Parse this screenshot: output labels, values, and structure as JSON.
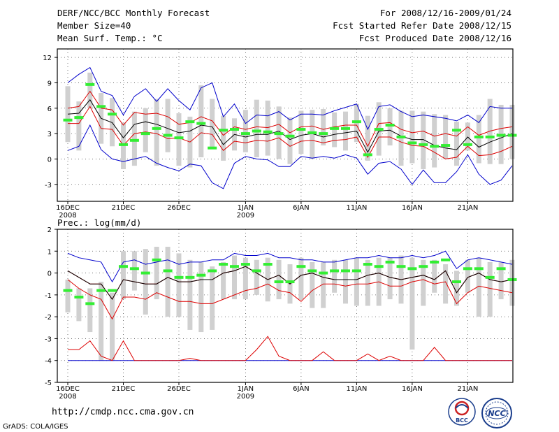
{
  "header": {
    "title": "DERF/NCC/BCC Monthly Forecast",
    "member": "Member Size=40",
    "variable": "Mean Surf. Temp.: °C",
    "period": "For 2008/12/16-2009/01/24",
    "started": "Fcst Started Refer Date 2008/12/15",
    "produced": "Fcst Produced Date 2008/12/16"
  },
  "footer": {
    "url": "http://cmdp.ncc.cma.gov.cn",
    "grads": "GrADS: COLA/IGES",
    "logo_left": "BCC",
    "logo_right": "NCC"
  },
  "colors": {
    "max": "#0000cc",
    "pct": "#dd0000",
    "mean": "#000000",
    "obs": "#33ee33",
    "box": "#d0d0d0"
  },
  "chart_data": [
    {
      "type": "line",
      "title": "Mean Surf. Temp.: °C",
      "ylim": [
        -5,
        13
      ],
      "yticks": [
        12,
        9,
        6,
        3,
        0,
        -3
      ],
      "xticks": [
        {
          "i": 0,
          "label": "16DEC",
          "sub": "2008"
        },
        {
          "i": 5,
          "label": "21DEC",
          "sub": ""
        },
        {
          "i": 10,
          "label": "26DEC",
          "sub": ""
        },
        {
          "i": 16,
          "label": "1JAN",
          "sub": "2009"
        },
        {
          "i": 21,
          "label": "6JAN",
          "sub": ""
        },
        {
          "i": 26,
          "label": "11JAN",
          "sub": ""
        },
        {
          "i": 31,
          "label": "16JAN",
          "sub": ""
        },
        {
          "i": 36,
          "label": "21JAN",
          "sub": ""
        }
      ],
      "series": [
        {
          "name": "max",
          "values": [
            9,
            10,
            10.8,
            8,
            7.5,
            5.2,
            7.4,
            8.3,
            6.8,
            8.3,
            6.9,
            5.8,
            8.4,
            9,
            5,
            6.5,
            4.2,
            5.2,
            5.1,
            5.6,
            4.6,
            5.3,
            5.3,
            5.2,
            5.7,
            6.1,
            6.5,
            3.5,
            6.2,
            6.4,
            5.6,
            5,
            5.2,
            5,
            4.8,
            4.5,
            5.2,
            4.3,
            6.2,
            6,
            6
          ]
        },
        {
          "name": "p75",
          "values": [
            6,
            6.2,
            8,
            6,
            5.8,
            4,
            5.5,
            5.3,
            5.4,
            5,
            4.1,
            4.3,
            5,
            4.5,
            2.8,
            3.8,
            3.5,
            3.8,
            3.7,
            4.1,
            3.1,
            3.8,
            3.9,
            3.5,
            3.8,
            4,
            4,
            1.5,
            4.2,
            4.3,
            3.5,
            3.1,
            3.3,
            2.7,
            3,
            2.7,
            3.8,
            2.8,
            3.3,
            3.6,
            3.8
          ]
        },
        {
          "name": "mean",
          "values": [
            5.3,
            5.4,
            7,
            4.8,
            4.3,
            2.5,
            4.1,
            4.4,
            4.1,
            3.6,
            3.1,
            3.3,
            4,
            3.8,
            1.7,
            2.9,
            2.6,
            2.9,
            2.9,
            3.3,
            2.3,
            2.8,
            3,
            2.6,
            2.9,
            3.1,
            3.3,
            0.8,
            3.3,
            3.4,
            2.7,
            2.3,
            2.3,
            1.6,
            1.3,
            1.1,
            2.6,
            1.4,
            2,
            2.5,
            3
          ]
        },
        {
          "name": "p25",
          "values": [
            4.2,
            4.2,
            6.2,
            3.6,
            3.5,
            1.6,
            3,
            3.2,
            3,
            2.4,
            2.5,
            2,
            3.1,
            2.9,
            1,
            2.1,
            1.9,
            2.2,
            2.1,
            2.5,
            1.5,
            2.1,
            2.2,
            1.9,
            2.2,
            2.3,
            2.6,
            0.2,
            2.6,
            2.6,
            2,
            1.6,
            1.5,
            0.8,
            0,
            0.2,
            1.5,
            0.4,
            0.5,
            0.9,
            1.5
          ]
        },
        {
          "name": "min",
          "values": [
            1,
            1.5,
            4,
            1.1,
            0,
            -0.3,
            0,
            0.3,
            -0.5,
            -1,
            -1.4,
            -0.6,
            -0.8,
            -2.8,
            -3.5,
            -0.5,
            0.3,
            0,
            -0.1,
            -0.9,
            -0.9,
            0.3,
            0.1,
            0.3,
            0.1,
            0.5,
            0.1,
            -1.8,
            -0.5,
            -0.3,
            -1.2,
            -3,
            -1.3,
            -2.8,
            -2.8,
            -1.5,
            0.5,
            -1.8,
            -3,
            -2.5,
            -0.8
          ]
        },
        {
          "name": "box_low",
          "values": [
            2,
            1,
            6,
            1.8,
            1.5,
            -1.2,
            -0.8,
            0.8,
            -0.8,
            0.8,
            -0.8,
            -1,
            0.2,
            1.3,
            -0.2,
            1,
            0.8,
            0.2,
            0.4,
            0,
            -0.6,
            0.6,
            0,
            1.6,
            1.4,
            1,
            2,
            -0.2,
            0.4,
            1.6,
            -0.8,
            -0.5,
            -1.2,
            -1,
            0,
            -0.8,
            1,
            -0.5,
            -0.6,
            -0.6,
            0
          ]
        },
        {
          "name": "box_high",
          "values": [
            8.6,
            6.8,
            10.2,
            7.8,
            7.2,
            4.3,
            5.6,
            6,
            7.1,
            7.1,
            5.4,
            5,
            8.7,
            7.1,
            5.1,
            4.8,
            5.8,
            7,
            6.9,
            6.2,
            4.9,
            5.7,
            5.8,
            5.9,
            5.5,
            5.6,
            6.5,
            5.1,
            6.7,
            6,
            5.7,
            5.7,
            5.6,
            5.3,
            5.2,
            4.4,
            4.3,
            5.2,
            7.1,
            6.4,
            6.4
          ]
        },
        {
          "name": "obs",
          "values": [
            4.6,
            4.9,
            8.8,
            6.2,
            5.3,
            1.7,
            2.2,
            3,
            3.6,
            2.8,
            2.5,
            4.4,
            4.2,
            1.3,
            3.4,
            3.5,
            3,
            3.3,
            3.2,
            3,
            2.7,
            3.5,
            3.1,
            3,
            3.6,
            3.6,
            4.4,
            0.5,
            3.5,
            4,
            2.6,
            1.9,
            1.7,
            1.5,
            1.6,
            3.4,
            1.7,
            2.6,
            2.6,
            2.8,
            2.8
          ]
        }
      ]
    },
    {
      "type": "line",
      "title": "Prec.: log(mm/d)",
      "ylim": [
        -5,
        2
      ],
      "yticks": [
        2,
        1,
        0,
        -1,
        -2,
        -3,
        -4,
        -5
      ],
      "xticks": [
        {
          "i": 0,
          "label": "16DEC",
          "sub": "2008"
        },
        {
          "i": 5,
          "label": "21DEC",
          "sub": ""
        },
        {
          "i": 10,
          "label": "26DEC",
          "sub": ""
        },
        {
          "i": 16,
          "label": "1JAN",
          "sub": "2009"
        },
        {
          "i": 21,
          "label": "6JAN",
          "sub": ""
        },
        {
          "i": 26,
          "label": "11JAN",
          "sub": ""
        },
        {
          "i": 31,
          "label": "16JAN",
          "sub": ""
        },
        {
          "i": 36,
          "label": "21JAN",
          "sub": ""
        }
      ],
      "series": [
        {
          "name": "max",
          "values": [
            0.9,
            0.7,
            0.6,
            0.5,
            -0.4,
            0.5,
            0.6,
            0.4,
            0.5,
            0.6,
            0.4,
            0.5,
            0.5,
            0.6,
            0.6,
            0.9,
            0.8,
            0.8,
            0.9,
            0.7,
            0.7,
            0.6,
            0.6,
            0.5,
            0.5,
            0.6,
            0.7,
            0.7,
            0.8,
            0.7,
            0.7,
            0.8,
            0.7,
            0.8,
            1,
            0.2,
            0.6,
            0.7,
            0.6,
            0.5,
            0.4
          ]
        },
        {
          "name": "p75",
          "values": [
            0.1,
            -0.2,
            -0.5,
            -0.5,
            -1.2,
            -0.3,
            -0.4,
            -0.5,
            -0.5,
            -0.2,
            -0.4,
            -0.4,
            -0.3,
            -0.3,
            0,
            0.1,
            0.3,
            0,
            -0.3,
            -0.1,
            -0.5,
            -0.1,
            0,
            -0.2,
            -0.3,
            -0.3,
            -0.3,
            -0.1,
            0,
            -0.2,
            -0.3,
            -0.2,
            -0.1,
            -0.3,
            0.1,
            -0.9,
            -0.2,
            0,
            -0.3,
            -0.4,
            -0.3
          ]
        },
        {
          "name": "mean",
          "values": [
            0.1,
            -0.2,
            -0.5,
            -0.5,
            -1.2,
            -0.3,
            -0.4,
            -0.5,
            -0.5,
            -0.2,
            -0.4,
            -0.4,
            -0.3,
            -0.3,
            0,
            0.1,
            0.3,
            0,
            -0.3,
            -0.1,
            -0.5,
            -0.1,
            0,
            -0.2,
            -0.3,
            -0.3,
            -0.3,
            -0.1,
            0,
            -0.2,
            -0.3,
            -0.2,
            -0.1,
            -0.3,
            0.1,
            -0.9,
            -0.2,
            0,
            -0.3,
            -0.4,
            -0.3
          ]
        },
        {
          "name": "p25",
          "values": [
            -0.3,
            -0.7,
            -1,
            -1.2,
            -2.1,
            -1.1,
            -1.1,
            -1.2,
            -0.9,
            -1.1,
            -1.3,
            -1.3,
            -1.4,
            -1.4,
            -1.2,
            -1,
            -0.8,
            -0.7,
            -0.5,
            -0.8,
            -0.9,
            -1.3,
            -0.8,
            -0.5,
            -0.5,
            -0.6,
            -0.5,
            -0.5,
            -0.4,
            -0.6,
            -0.6,
            -0.4,
            -0.3,
            -0.5,
            -0.4,
            -1.4,
            -0.9,
            -0.6,
            -0.7,
            -0.8,
            -0.9
          ]
        },
        {
          "name": "p10",
          "values": [
            -3.5,
            -3.5,
            -3.1,
            -3.8,
            -4,
            -3.1,
            -4,
            -4,
            -4,
            -4,
            -4,
            -3.9,
            -4,
            -4,
            -4,
            -4,
            -4,
            -3.5,
            -2.9,
            -3.8,
            -4,
            -4,
            -4,
            -3.6,
            -4,
            -4,
            -4,
            -3.7,
            -4,
            -3.8,
            -4,
            -4,
            -4,
            -3.4,
            -4,
            -4,
            -4,
            -4,
            -4,
            -4,
            -4
          ]
        },
        {
          "name": "min",
          "values": [
            -4,
            -4,
            -4,
            -4,
            -4,
            -4,
            -4,
            -4,
            -4,
            -4,
            -4,
            -4,
            -4,
            -4,
            -4,
            -4,
            -4,
            -4,
            -4,
            -4,
            -4,
            -4,
            -4,
            -4,
            -4,
            -4,
            -4,
            -4,
            -4,
            -4,
            -4,
            -4,
            -4,
            -4,
            -4,
            -4,
            -4,
            -4,
            -4,
            -4,
            -4
          ]
        },
        {
          "name": "box_low",
          "values": [
            -1.8,
            -2.2,
            -2.7,
            -4,
            -4,
            -1.2,
            -0.8,
            -1.9,
            -1.2,
            -2,
            -2,
            -2.6,
            -2.7,
            -2.6,
            -1.2,
            -1.2,
            -1.2,
            -1,
            -1.3,
            -1.2,
            -1.4,
            -1.2,
            -1.6,
            -1.6,
            -0.9,
            -1.4,
            -1.5,
            -1.5,
            -1.5,
            -1.2,
            -1.4,
            -3.5,
            -1.5,
            -0.9,
            -1.4,
            -1.5,
            -0.9,
            -2,
            -2,
            -1.2,
            -1.5
          ]
        },
        {
          "name": "box_high",
          "values": [
            -0.3,
            -0.7,
            -0.7,
            -0.4,
            -0.9,
            1,
            1,
            1.1,
            1.2,
            1.2,
            0.9,
            0.6,
            0.5,
            0.3,
            0.5,
            0.8,
            0.7,
            0.6,
            0.7,
            0.6,
            0.4,
            0.7,
            0.5,
            0.5,
            0.6,
            0.6,
            0.7,
            0.6,
            0.7,
            0.7,
            0.8,
            0.7,
            0.6,
            0.6,
            0.4,
            0.1,
            0.6,
            0.7,
            0.5,
            0.5,
            0.6
          ]
        },
        {
          "name": "obs",
          "values": [
            -0.8,
            -1.1,
            -1.4,
            -0.8,
            -0.8,
            0.3,
            0.2,
            0,
            0.6,
            0.1,
            -0.2,
            -0.2,
            -0.1,
            0.1,
            0.4,
            0.3,
            0.4,
            0.1,
            0.4,
            -0.4,
            -0.4,
            0.3,
            0.1,
            0,
            0.1,
            0.1,
            0.1,
            0.4,
            0.3,
            0.5,
            0.3,
            0.2,
            0.3,
            0.5,
            0.6,
            -0.4,
            0.2,
            0.2,
            -0.2,
            0.2,
            -0.3
          ]
        }
      ]
    }
  ]
}
